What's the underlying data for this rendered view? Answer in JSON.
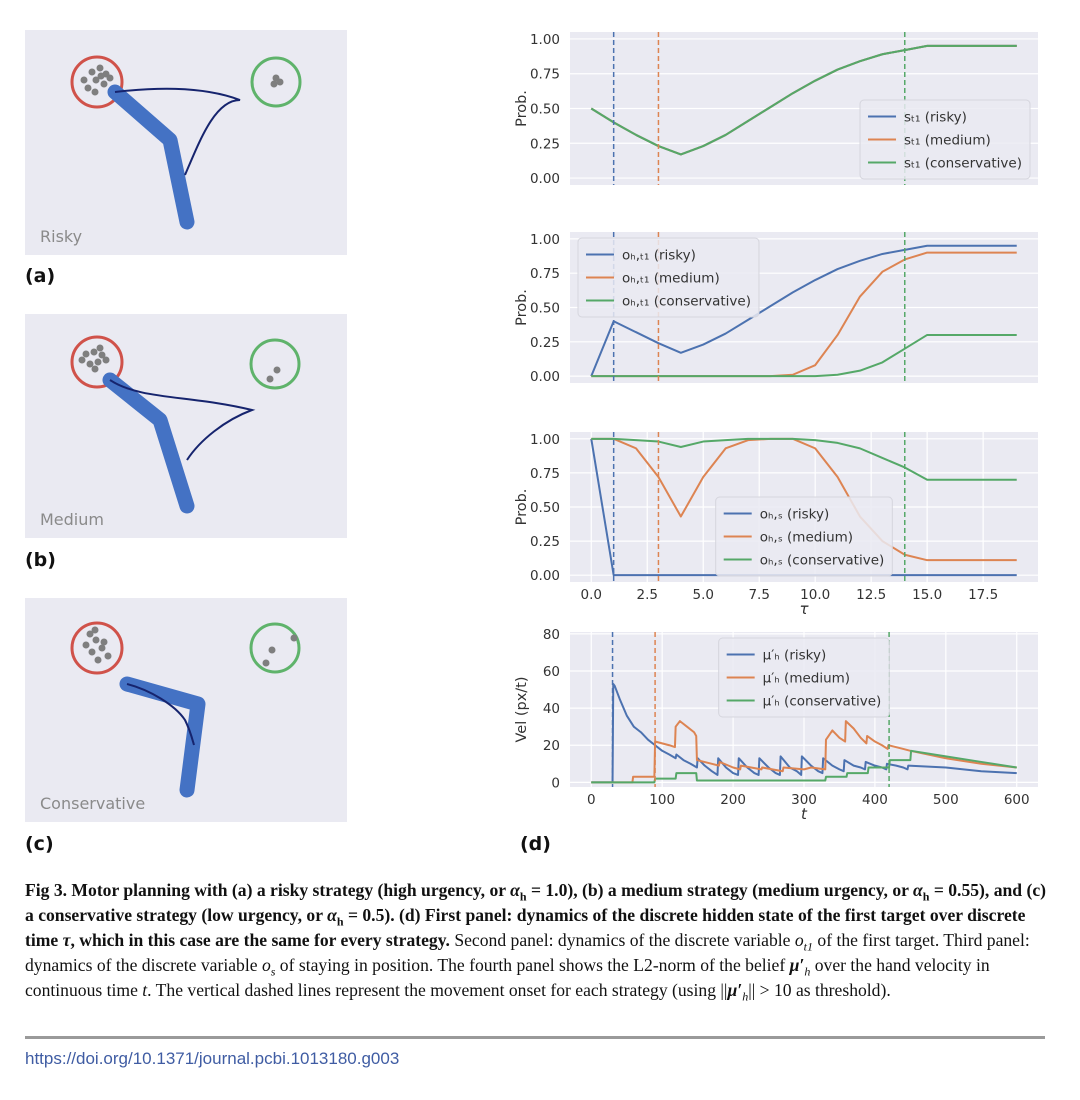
{
  "panels": [
    {
      "tag": "(a)",
      "label": "Risky"
    },
    {
      "tag": "(b)",
      "label": "Medium"
    },
    {
      "tag": "(c)",
      "label": "Conservative"
    }
  ],
  "panel_d_tag": "(d)",
  "chart_data": [
    {
      "type": "line",
      "ylabel": "Prob.",
      "legend": "lower right",
      "xlim": [
        -0.95,
        19.95
      ],
      "ylim": [
        -0.05,
        1.05
      ],
      "yticks": [
        {
          "value": 0,
          "label": "0.00"
        },
        0.25,
        {
          "value": 0.5,
          "label": "0.50"
        },
        0.75,
        {
          "value": 1,
          "label": "1.00"
        }
      ],
      "x": [
        0,
        1,
        2,
        3,
        4,
        5,
        6,
        7,
        8,
        9,
        10,
        11,
        12,
        13,
        14,
        15,
        16,
        17,
        18,
        19
      ],
      "vlines": [
        {
          "value": 1,
          "color": "#4c72b0"
        },
        {
          "value": 3,
          "color": "#dd8452"
        },
        {
          "value": 14,
          "color": "#55a868"
        }
      ],
      "series": [
        {
          "name": "sₜ₁ (risky)",
          "color": "#4c72b0",
          "values": [
            0.5,
            0.4,
            0.31,
            0.23,
            0.17,
            0.23,
            0.31,
            0.41,
            0.51,
            0.61,
            0.7,
            0.78,
            0.84,
            0.89,
            0.92,
            0.95,
            0.95,
            0.95,
            0.95,
            0.95
          ]
        },
        {
          "name": "sₜ₁ (medium)",
          "color": "#dd8452",
          "values": [
            0.5,
            0.4,
            0.31,
            0.23,
            0.17,
            0.23,
            0.31,
            0.41,
            0.51,
            0.61,
            0.7,
            0.78,
            0.84,
            0.89,
            0.92,
            0.95,
            0.95,
            0.95,
            0.95,
            0.95
          ]
        },
        {
          "name": "sₜ₁ (conservative)",
          "color": "#55a868",
          "values": [
            0.5,
            0.4,
            0.31,
            0.23,
            0.17,
            0.23,
            0.31,
            0.41,
            0.51,
            0.61,
            0.7,
            0.78,
            0.84,
            0.89,
            0.92,
            0.95,
            0.95,
            0.95,
            0.95,
            0.95
          ]
        }
      ]
    },
    {
      "type": "line",
      "ylabel": "Prob.",
      "legend": "upper left",
      "xlim": [
        -0.95,
        19.95
      ],
      "ylim": [
        -0.05,
        1.05
      ],
      "yticks": [
        {
          "value": 0,
          "label": "0.00"
        },
        0.25,
        {
          "value": 0.5,
          "label": "0.50"
        },
        0.75,
        {
          "value": 1,
          "label": "1.00"
        }
      ],
      "x": [
        0,
        1,
        2,
        3,
        4,
        5,
        6,
        7,
        8,
        9,
        10,
        11,
        12,
        13,
        14,
        15,
        16,
        17,
        18,
        19
      ],
      "vlines": [
        {
          "value": 1,
          "color": "#4c72b0"
        },
        {
          "value": 3,
          "color": "#dd8452"
        },
        {
          "value": 14,
          "color": "#55a868"
        }
      ],
      "series": [
        {
          "name": "oₕ,ₜ₁ (risky)",
          "color": "#4c72b0",
          "values": [
            0,
            0.4,
            0.32,
            0.24,
            0.17,
            0.23,
            0.31,
            0.41,
            0.51,
            0.61,
            0.7,
            0.78,
            0.84,
            0.89,
            0.92,
            0.95,
            0.95,
            0.95,
            0.95,
            0.95
          ]
        },
        {
          "name": "oₕ,ₜ₁ (medium)",
          "color": "#dd8452",
          "values": [
            0,
            0,
            0,
            0,
            0,
            0,
            0,
            0,
            0,
            0.01,
            0.08,
            0.3,
            0.58,
            0.76,
            0.85,
            0.9,
            0.9,
            0.9,
            0.9,
            0.9
          ]
        },
        {
          "name": "oₕ,ₜ₁ (conservative)",
          "color": "#55a868",
          "values": [
            0,
            0,
            0,
            0,
            0,
            0,
            0,
            0,
            0,
            0,
            0,
            0.01,
            0.04,
            0.1,
            0.2,
            0.3,
            0.3,
            0.3,
            0.3,
            0.3
          ]
        }
      ]
    },
    {
      "type": "line",
      "ylabel": "Prob.",
      "xlabel": "τ",
      "legend": "lower center",
      "xlim": [
        -0.95,
        19.95
      ],
      "ylim": [
        -0.05,
        1.05
      ],
      "yticks": [
        {
          "value": 0,
          "label": "0.00"
        },
        0.25,
        {
          "value": 0.5,
          "label": "0.50"
        },
        0.75,
        {
          "value": 1,
          "label": "1.00"
        }
      ],
      "xticks": [
        {
          "value": 0,
          "label": "0.0"
        },
        2.5,
        {
          "value": 5,
          "label": "5.0"
        },
        7.5,
        {
          "value": 10,
          "label": "10.0"
        },
        12.5,
        {
          "value": 15,
          "label": "15.0"
        },
        17.5
      ],
      "x": [
        0,
        1,
        2,
        3,
        4,
        5,
        6,
        7,
        8,
        9,
        10,
        11,
        12,
        13,
        14,
        15,
        16,
        17,
        18,
        19
      ],
      "vlines": [
        {
          "value": 1,
          "color": "#4c72b0"
        },
        {
          "value": 3,
          "color": "#dd8452"
        },
        {
          "value": 14,
          "color": "#55a868"
        }
      ],
      "series": [
        {
          "name": "oₕ,ₛ (risky)",
          "color": "#4c72b0",
          "values": [
            1,
            0,
            0,
            0,
            0,
            0,
            0,
            0,
            0,
            0,
            0,
            0,
            0,
            0,
            0,
            0,
            0,
            0,
            0,
            0
          ]
        },
        {
          "name": "oₕ,ₛ (medium)",
          "color": "#dd8452",
          "values": [
            1,
            1,
            0.93,
            0.72,
            0.43,
            0.72,
            0.93,
            0.99,
            1,
            1,
            0.93,
            0.72,
            0.43,
            0.25,
            0.15,
            0.11,
            0.11,
            0.11,
            0.11,
            0.11
          ]
        },
        {
          "name": "oₕ,ₛ (conservative)",
          "color": "#55a868",
          "values": [
            1,
            1,
            0.99,
            0.98,
            0.94,
            0.98,
            0.99,
            1,
            1,
            1,
            0.99,
            0.97,
            0.93,
            0.86,
            0.79,
            0.7,
            0.7,
            0.7,
            0.7,
            0.7
          ]
        }
      ]
    },
    {
      "type": "line",
      "ylabel": "Vel (px/t)",
      "xlabel": "t",
      "legend": "upper center",
      "xlim": [
        -30,
        630
      ],
      "ylim": [
        -2.5,
        81
      ],
      "yticks": [
        0,
        20,
        40,
        60,
        80
      ],
      "xticks": [
        0,
        100,
        200,
        300,
        400,
        500,
        600
      ],
      "vlines": [
        {
          "value": 30,
          "color": "#4c72b0"
        },
        {
          "value": 90,
          "color": "#dd8452"
        },
        {
          "value": 420,
          "color": "#55a868"
        }
      ],
      "series": [
        {
          "name": "μ′ₕ (risky)",
          "color": "#4c72b0",
          "x": [
            0,
            30,
            31,
            33,
            40,
            50,
            60,
            70,
            80,
            90,
            100,
            110,
            119,
            120,
            130,
            140,
            149,
            150,
            160,
            170,
            178,
            179,
            190,
            200,
            207,
            208,
            220,
            230,
            236,
            237,
            250,
            260,
            266,
            267,
            280,
            290,
            296,
            297,
            310,
            320,
            326,
            327,
            340,
            350,
            356,
            357,
            370,
            380,
            386,
            387,
            400,
            410,
            416,
            417,
            430,
            440,
            446,
            447,
            500,
            550,
            600
          ],
          "values": [
            0,
            0,
            53,
            52,
            45,
            36,
            30,
            27,
            23,
            20,
            17,
            15,
            13,
            15,
            12,
            10,
            8,
            13,
            9,
            6,
            4,
            13,
            8,
            5,
            4,
            13,
            8,
            5,
            4,
            13,
            8,
            5,
            4,
            14,
            8,
            6,
            4,
            14,
            9,
            6,
            5,
            13,
            9,
            7,
            6,
            12,
            9,
            8,
            7,
            11,
            9,
            8,
            7,
            10,
            9,
            8,
            7,
            9,
            8,
            6,
            5
          ]
        },
        {
          "name": "μ′ₕ (medium)",
          "color": "#dd8452",
          "x": [
            0,
            58,
            59,
            89,
            90,
            100,
            110,
            118,
            119,
            125,
            135,
            145,
            148,
            149,
            170,
            180,
            181,
            200,
            210,
            211,
            240,
            241,
            270,
            271,
            300,
            310,
            330,
            331,
            340,
            350,
            358,
            359,
            370,
            380,
            388,
            389,
            400,
            410,
            418,
            419,
            440,
            450,
            500,
            550,
            600
          ],
          "values": [
            0,
            0,
            3,
            3,
            22,
            21,
            20,
            19,
            30,
            33,
            30,
            27,
            25,
            12,
            10,
            9,
            11,
            8,
            7,
            9,
            7,
            8,
            6,
            8,
            7,
            8,
            7,
            23,
            28,
            24,
            22,
            33,
            29,
            24,
            21,
            25,
            22,
            20,
            18,
            20,
            18,
            17,
            13,
            10,
            8
          ]
        },
        {
          "name": "μ′ₕ (conservative)",
          "color": "#55a868",
          "x": [
            0,
            89,
            90,
            119,
            120,
            148,
            149,
            330,
            331,
            360,
            361,
            390,
            391,
            420,
            421,
            450,
            451,
            500,
            550,
            600
          ],
          "values": [
            0,
            0,
            2,
            2,
            5,
            5,
            1,
            1,
            3,
            3,
            5,
            5,
            8,
            8,
            12,
            12,
            17,
            14,
            11,
            8
          ]
        }
      ]
    }
  ],
  "caption": [
    "Fig 3. Motor planning with (a) a risky strategy (high urgency, or ",
    "α",
    "h",
    " = 1.0), (b) a medium strategy (medium urgency, or ",
    "α",
    "h",
    " = 0.55), and (c) a conservative strategy (low urgency, or ",
    "α",
    "h",
    " = 0.5). (d) First panel: dynamics of the discrete hidden state of the first target over discrete time ",
    "τ",
    ", which in this case are the same for every strategy.",
    " Second panel: dynamics of the discrete variable ",
    "o",
    "t1",
    " of the first target. Third panel: dynamics of the discrete variable ",
    "o",
    "s",
    " of staying in position. The fourth panel shows the L2-norm of the belief ",
    "μ′",
    "h",
    " over the hand velocity in continuous time ",
    "t",
    ". The vertical dashed lines represent the movement onset for each strategy (using ||",
    "μ′",
    "h",
    "|| > 10 as threshold)."
  ],
  "doi": "https://doi.org/10.1371/journal.pcbi.1013180.g003"
}
